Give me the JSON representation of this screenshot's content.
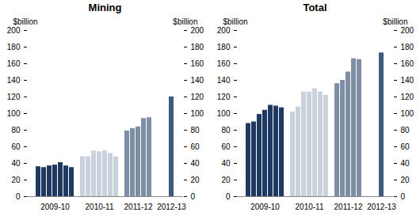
{
  "chart_data": [
    {
      "type": "bar",
      "title": "Mining",
      "y_label": "$billion",
      "y2_label": "$billion",
      "categories": [
        null,
        null,
        null,
        "2009-10",
        null,
        null,
        null,
        null,
        null,
        null,
        null,
        "2010-11",
        null,
        null,
        null,
        null,
        null,
        null,
        "2011-12",
        null,
        null,
        null,
        null,
        null,
        "2012-13"
      ],
      "values": [
        36,
        35,
        37,
        38,
        41,
        37,
        35,
        null,
        48,
        48,
        55,
        54,
        55,
        52,
        48,
        null,
        79,
        82,
        84,
        94,
        95,
        null,
        null,
        null,
        120
      ],
      "colors": [
        "#1f3a60",
        "#1f3a60",
        "#1f3a60",
        "#1f3a60",
        "#1f3a60",
        "#1f3a60",
        "#1f3a60",
        null,
        "#c9d1dd",
        "#c9d1dd",
        "#c9d1dd",
        "#c9d1dd",
        "#c9d1dd",
        "#c9d1dd",
        "#c9d1dd",
        null,
        "#7d8ea6",
        "#7d8ea6",
        "#7d8ea6",
        "#7d8ea6",
        "#7d8ea6",
        null,
        null,
        null,
        "#3d5a80"
      ],
      "ylim": [
        0,
        200
      ],
      "yticks": [
        0,
        20,
        40,
        60,
        80,
        100,
        120,
        140,
        160,
        180,
        200
      ],
      "y2lim": [
        0,
        200
      ],
      "y2ticks": [
        0,
        20,
        40,
        60,
        80,
        100,
        120,
        140,
        160,
        180,
        200
      ]
    },
    {
      "type": "bar",
      "title": "Total",
      "y_label": "$billion",
      "y2_label": "$billion",
      "categories": [
        null,
        null,
        null,
        "2009-10",
        null,
        null,
        null,
        null,
        null,
        null,
        null,
        "2010-11",
        null,
        null,
        null,
        null,
        null,
        null,
        "2011-12",
        null,
        null,
        null,
        null,
        null,
        "2012-13"
      ],
      "values": [
        88,
        90,
        99,
        104,
        110,
        109,
        107,
        null,
        102,
        108,
        126,
        126,
        130,
        126,
        122,
        null,
        136,
        140,
        150,
        166,
        165,
        null,
        null,
        null,
        173
      ],
      "colors": [
        "#1f3a60",
        "#1f3a60",
        "#1f3a60",
        "#1f3a60",
        "#1f3a60",
        "#1f3a60",
        "#1f3a60",
        null,
        "#c9d1dd",
        "#c9d1dd",
        "#c9d1dd",
        "#c9d1dd",
        "#c9d1dd",
        "#c9d1dd",
        "#c9d1dd",
        null,
        "#7d8ea6",
        "#7d8ea6",
        "#7d8ea6",
        "#7d8ea6",
        "#7d8ea6",
        null,
        null,
        null,
        "#3d5a80"
      ],
      "ylim": [
        0,
        200
      ],
      "yticks": [
        0,
        20,
        40,
        60,
        80,
        100,
        120,
        140,
        160,
        180,
        200
      ],
      "y2lim": [
        0,
        200
      ],
      "y2ticks": [
        0,
        20,
        40,
        60,
        80,
        100,
        120,
        140,
        160,
        180,
        200
      ]
    }
  ]
}
